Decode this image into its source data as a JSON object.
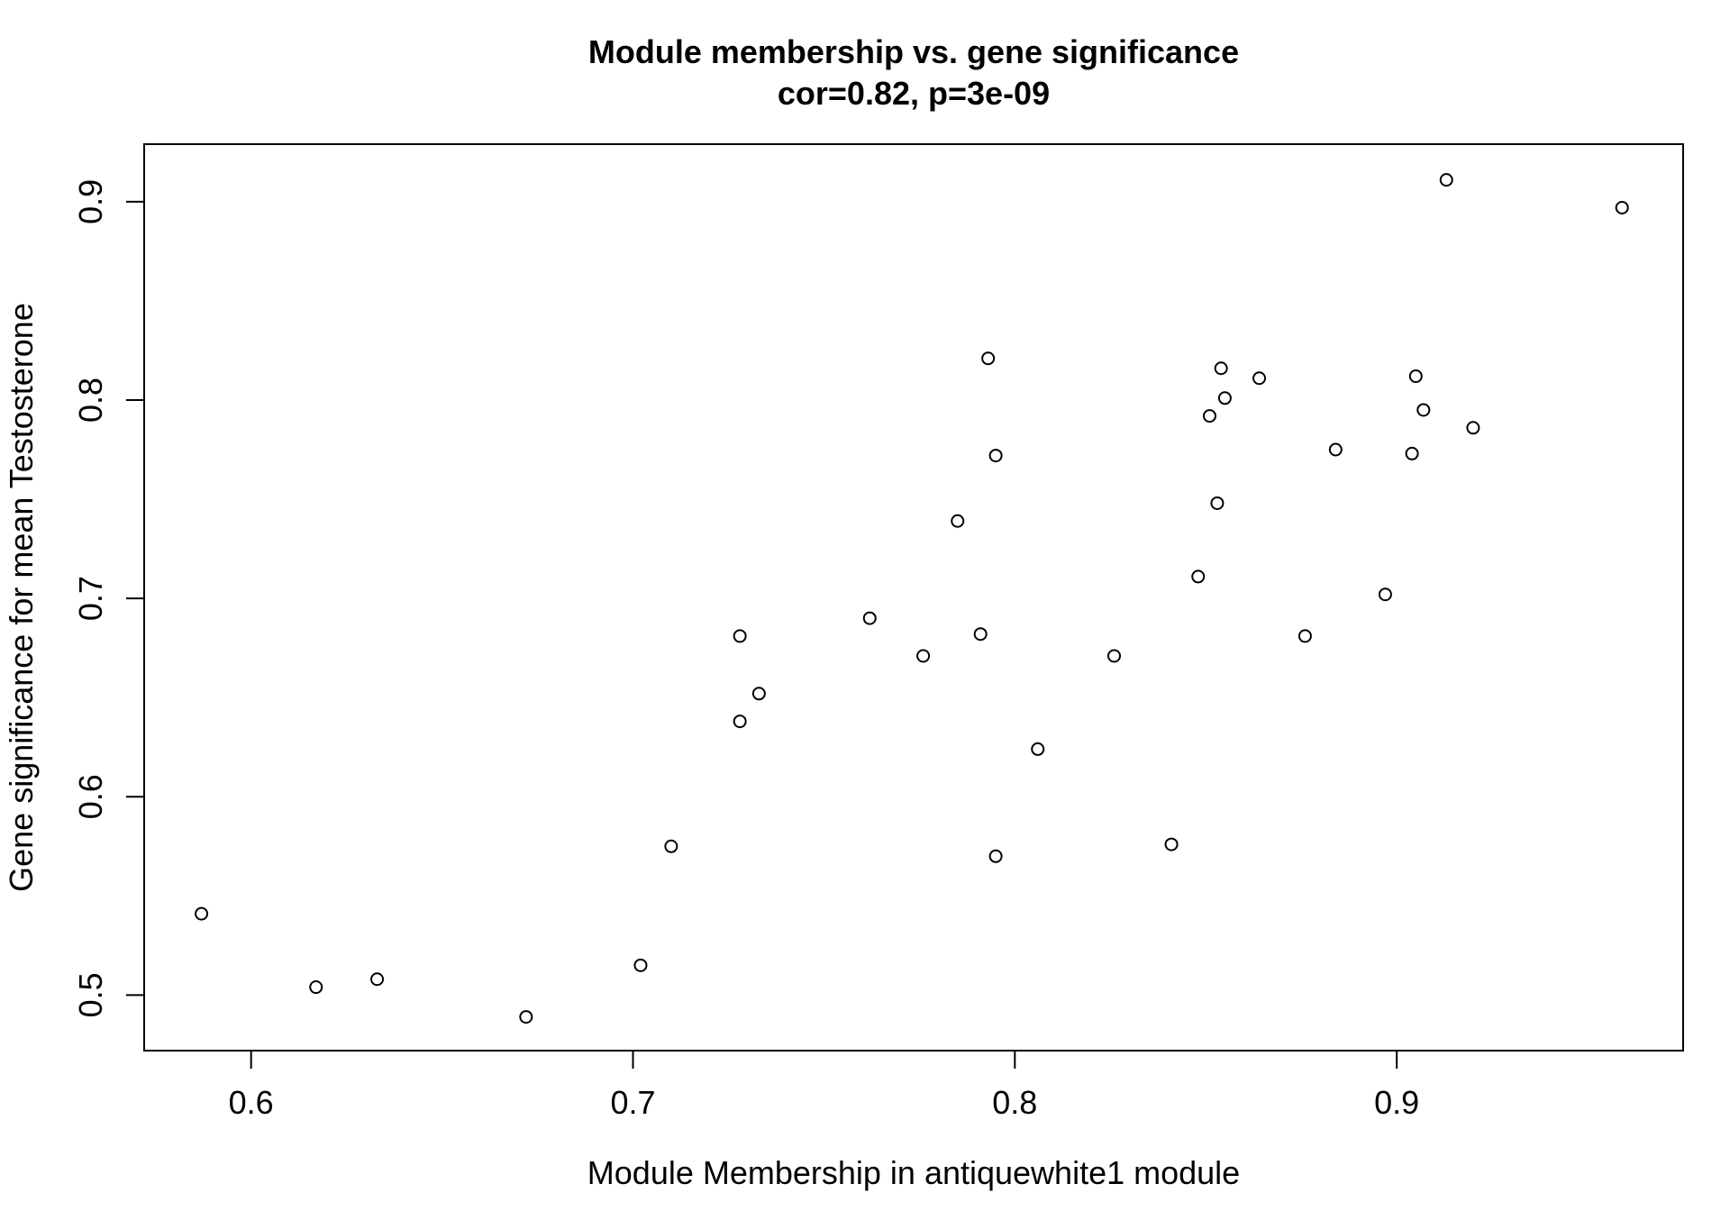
{
  "chart_data": {
    "type": "scatter",
    "title": "Module membership vs. gene significance",
    "subtitle": "cor=0.82, p=3e-09",
    "xlabel": "Module Membership in antiquewhite1 module",
    "ylabel": "Gene significance for mean Testosterone",
    "xlim": [
      0.572,
      0.975
    ],
    "ylim": [
      0.472,
      0.929
    ],
    "xticks": [
      0.6,
      0.7,
      0.8,
      0.9
    ],
    "xtick_labels": [
      "0.6",
      "0.7",
      "0.8",
      "0.9"
    ],
    "yticks": [
      0.5,
      0.6,
      0.7,
      0.8,
      0.9
    ],
    "ytick_labels": [
      "0.5",
      "0.6",
      "0.7",
      "0.8",
      "0.9"
    ],
    "grid": false,
    "marker": "open-circle",
    "colors": {
      "points": "#000000",
      "axes": "#000000",
      "background": "#ffffff"
    },
    "points": [
      {
        "x": 0.587,
        "y": 0.541
      },
      {
        "x": 0.617,
        "y": 0.504
      },
      {
        "x": 0.633,
        "y": 0.508
      },
      {
        "x": 0.672,
        "y": 0.489
      },
      {
        "x": 0.702,
        "y": 0.515
      },
      {
        "x": 0.71,
        "y": 0.575
      },
      {
        "x": 0.728,
        "y": 0.638
      },
      {
        "x": 0.728,
        "y": 0.681
      },
      {
        "x": 0.733,
        "y": 0.652
      },
      {
        "x": 0.762,
        "y": 0.69
      },
      {
        "x": 0.776,
        "y": 0.671
      },
      {
        "x": 0.785,
        "y": 0.739
      },
      {
        "x": 0.791,
        "y": 0.682
      },
      {
        "x": 0.793,
        "y": 0.821
      },
      {
        "x": 0.795,
        "y": 0.772
      },
      {
        "x": 0.795,
        "y": 0.57
      },
      {
        "x": 0.806,
        "y": 0.624
      },
      {
        "x": 0.826,
        "y": 0.671
      },
      {
        "x": 0.841,
        "y": 0.576
      },
      {
        "x": 0.848,
        "y": 0.711
      },
      {
        "x": 0.851,
        "y": 0.792
      },
      {
        "x": 0.853,
        "y": 0.748
      },
      {
        "x": 0.854,
        "y": 0.816
      },
      {
        "x": 0.855,
        "y": 0.801
      },
      {
        "x": 0.864,
        "y": 0.811
      },
      {
        "x": 0.876,
        "y": 0.681
      },
      {
        "x": 0.884,
        "y": 0.775
      },
      {
        "x": 0.897,
        "y": 0.702
      },
      {
        "x": 0.904,
        "y": 0.773
      },
      {
        "x": 0.905,
        "y": 0.812
      },
      {
        "x": 0.907,
        "y": 0.795
      },
      {
        "x": 0.913,
        "y": 0.911
      },
      {
        "x": 0.92,
        "y": 0.786
      },
      {
        "x": 0.959,
        "y": 0.897
      }
    ]
  }
}
